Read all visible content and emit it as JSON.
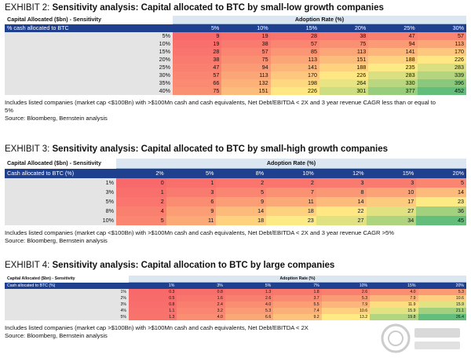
{
  "exhibits": [
    {
      "id": "e2",
      "number": "EXHIBIT 2:",
      "title": "Sensitivity analysis: Capital allocated to BTC by small-low growth companies",
      "corner": "Capital Allocated ($bn) - Sensitivity",
      "adoption_header": "Adoption Rate (%)",
      "row_header": "% cash allocated to BTC",
      "cols": [
        "5%",
        "10%",
        "15%",
        "20%",
        "25%",
        "30%"
      ],
      "rows": [
        {
          "label": "5%",
          "values": [
            "9",
            "19",
            "28",
            "38",
            "47",
            "57"
          ]
        },
        {
          "label": "10%",
          "values": [
            "19",
            "38",
            "57",
            "75",
            "94",
            "113"
          ]
        },
        {
          "label": "15%",
          "values": [
            "28",
            "57",
            "85",
            "113",
            "141",
            "170"
          ]
        },
        {
          "label": "20%",
          "values": [
            "38",
            "75",
            "113",
            "151",
            "188",
            "226"
          ]
        },
        {
          "label": "25%",
          "values": [
            "47",
            "94",
            "141",
            "188",
            "235",
            "283"
          ]
        },
        {
          "label": "30%",
          "values": [
            "57",
            "113",
            "170",
            "226",
            "283",
            "339"
          ]
        },
        {
          "label": "35%",
          "values": [
            "66",
            "132",
            "198",
            "264",
            "330",
            "396"
          ]
        },
        {
          "label": "40%",
          "values": [
            "75",
            "151",
            "226",
            "301",
            "377",
            "452"
          ]
        }
      ],
      "notes": [
        "Includes listed companies (market cap <$100Bn) with >$100Mn cash and cash equivalents, Net Debt/EBITDA < 2X and 3 year revenue CAGR less than or equal to",
        "5%",
        "Source: Bloomberg, Bernstein analysis"
      ]
    },
    {
      "id": "e3",
      "number": "EXHIBIT 3:",
      "title": "Sensitivity analysis: Capital allocated to BTC by small-high growth companies",
      "corner": "Capital Allocated ($bn) - Sensitivity",
      "adoption_header": "Adoption Rate (%)",
      "row_header": "Cash allocated to BTC (%)",
      "cols": [
        "2%",
        "5%",
        "8%",
        "10%",
        "12%",
        "15%",
        "20%"
      ],
      "rows": [
        {
          "label": "1%",
          "values": [
            "0",
            "1",
            "2",
            "2",
            "3",
            "3",
            "5"
          ]
        },
        {
          "label": "3%",
          "values": [
            "1",
            "3",
            "5",
            "7",
            "8",
            "10",
            "14"
          ]
        },
        {
          "label": "5%",
          "values": [
            "2",
            "6",
            "9",
            "11",
            "14",
            "17",
            "23"
          ]
        },
        {
          "label": "8%",
          "values": [
            "4",
            "9",
            "14",
            "18",
            "22",
            "27",
            "36"
          ]
        },
        {
          "label": "10%",
          "values": [
            "5",
            "11",
            "18",
            "23",
            "27",
            "34",
            "45"
          ]
        }
      ],
      "notes": [
        "Includes listed companies (market cap <$100Bn) with >$100Mn cash and cash equivalents, Net Debt/EBITDA < 2X and 3 year revenue CAGR >5%",
        "Source: Bloomberg, Bernstein analysis"
      ]
    },
    {
      "id": "e4",
      "number": "EXHIBIT 4:",
      "title": "Sensitivity analysis: Capital allocation to BTC by large companies",
      "corner": "Capital Allocated ($bn) - Sensitivity",
      "adoption_header": "Adoption Rate (%)",
      "row_header": "Cash allocated to BTC (%)",
      "cols": [
        "1%",
        "3%",
        "5%",
        "7%",
        "10%",
        "15%",
        "20%"
      ],
      "rows": [
        {
          "label": "1%",
          "values": [
            "0.3",
            "0.8",
            "1.3",
            "1.8",
            "2.6",
            "4.0",
            "5.3"
          ]
        },
        {
          "label": "2%",
          "values": [
            "0.5",
            "1.6",
            "2.6",
            "3.7",
            "5.3",
            "7.9",
            "10.6"
          ]
        },
        {
          "label": "3%",
          "values": [
            "0.8",
            "2.4",
            "4.0",
            "5.5",
            "7.9",
            "11.9",
            "15.9"
          ]
        },
        {
          "label": "4%",
          "values": [
            "1.1",
            "3.2",
            "5.3",
            "7.4",
            "10.6",
            "15.9",
            "21.1"
          ]
        },
        {
          "label": "5%",
          "values": [
            "1.3",
            "4.0",
            "6.6",
            "9.2",
            "13.2",
            "19.8",
            "26.4"
          ]
        }
      ],
      "notes": [
        "Includes listed companies (market cap >$100Bn) with >$100Mn cash and cash equivalents, Net Debt/EBITDA < 2X",
        "Source: Bloomberg, Bernstein analysis"
      ]
    }
  ],
  "palette": {
    "low": "#f8696b",
    "mid": "#ffeb84",
    "high": "#63be7b",
    "header_blue": "#1f3f8f",
    "adoption_band": "#dce6f1",
    "row_label_gray": "#e4e4e4"
  }
}
